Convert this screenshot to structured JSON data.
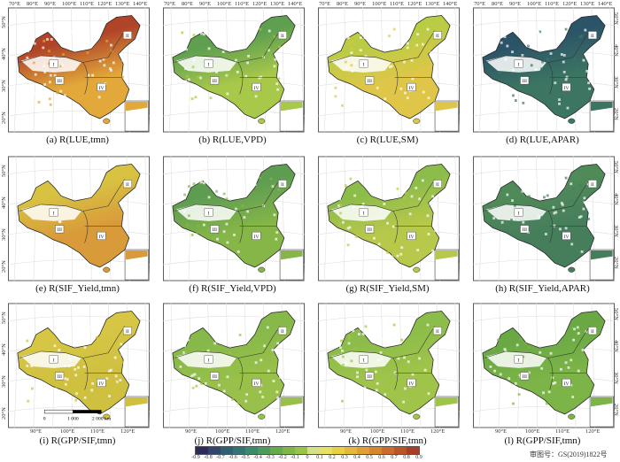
{
  "panels": [
    {
      "caption": "(a) R(LUE,tmn)",
      "north": "#b04428",
      "south": "#e2a83a"
    },
    {
      "caption": "(b) R(LUE,VPD)",
      "north": "#5e9f50",
      "south": "#a8c84a"
    },
    {
      "caption": "(c) R(LUE,SM)",
      "north": "#b9cc44",
      "south": "#e0c648"
    },
    {
      "caption": "(d) R(LUE,APAR)",
      "north": "#2c5468",
      "south": "#3c7662"
    },
    {
      "caption": "(e) R(SIF_Yield,tmn)",
      "north": "#d8c242",
      "south": "#d99a3a"
    },
    {
      "caption": "(f) R(SIF_Yield,VPD)",
      "north": "#5e9c52",
      "south": "#86b648"
    },
    {
      "caption": "(g) R(SIF_Yield,SM)",
      "north": "#8cbc4a",
      "south": "#b8c84a"
    },
    {
      "caption": "(h) R(SIF_Yield,APAR)",
      "north": "#4f8a58",
      "south": "#467e5c"
    },
    {
      "caption": "(i) R(GPP/SIF,tmn)",
      "north": "#d6c644",
      "south": "#cfc040"
    },
    {
      "caption": "(j) R(GPP/SIF,tmn)",
      "north": "#86b84a",
      "south": "#98c04a"
    },
    {
      "caption": "(k) R(GPP/SIF,tmn)",
      "north": "#8cbc4a",
      "south": "#a0c44a"
    },
    {
      "caption": "(l) R(GPP/SIF,tmn)",
      "north": "#6aa844",
      "south": "#7cb448"
    }
  ],
  "regions": [
    "I",
    "II",
    "III",
    "IV"
  ],
  "lon_top": [
    "70°E",
    "80°E",
    "90°E",
    "100°E",
    "110°E",
    "120°E",
    "130°E",
    "140°E"
  ],
  "lon_bottom": [
    "90°E",
    "100°E",
    "110°E",
    "120°E"
  ],
  "lat": [
    "50°N",
    "40°N",
    "30°N",
    "20°N"
  ],
  "scalebar": [
    "0",
    "1 000",
    "2 000 km"
  ],
  "colorbar": {
    "ticks": [
      "-0.9",
      "-0.8",
      "-0.7",
      "-0.6",
      "-0.5",
      "-0.4",
      "-0.3",
      "-0.2",
      "-0.1",
      "0",
      "0.1",
      "0.2",
      "0.3",
      "0.4",
      "0.5",
      "0.6",
      "0.7",
      "0.8",
      "0.9"
    ],
    "colors": [
      "#2e2a5e",
      "#30466e",
      "#2f5f72",
      "#327572",
      "#3a8a6c",
      "#4e9a5c",
      "#66aa4c",
      "#7eb848",
      "#98c448",
      "#d6e08a",
      "#e8e060",
      "#e8d040",
      "#e6b83a",
      "#e0a034",
      "#d8862e",
      "#cc6c2c",
      "#bc542a",
      "#a83e28"
    ]
  },
  "map_approval": "审图号：GS(2019)1822号"
}
